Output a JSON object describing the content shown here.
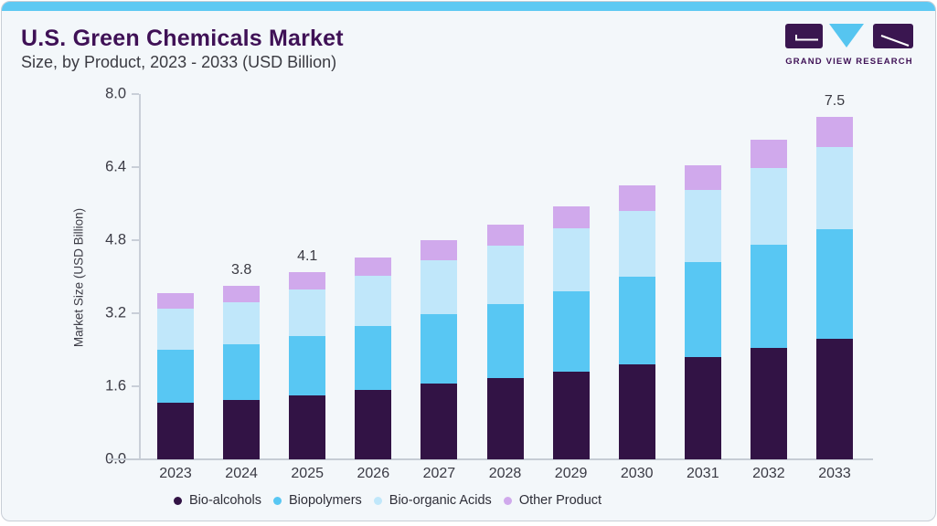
{
  "header": {
    "title": "U.S. Green Chemicals Market",
    "subtitle": "Size, by Product, 2023 - 2033 (USD Billion)",
    "logo_text": "GRAND VIEW RESEARCH"
  },
  "colors": {
    "accent_strip": "#5ec9f3",
    "card_background": "#f3f7fa",
    "card_border": "#c8ced6",
    "title_purple": "#3f1156",
    "axis_line": "#c9cfd8",
    "text_gray": "#3c3c46",
    "logo_dark_purple": "#3a1650",
    "logo_blue": "#56c5f0"
  },
  "chart_data": {
    "type": "bar",
    "stacked": true,
    "title": "U.S. Green Chemicals Market Size, by Product, 2023 - 2033 (USD Billion)",
    "xlabel": "",
    "ylabel": "Market Size (USD Billion)",
    "ylim": [
      0,
      8
    ],
    "yticks": [
      8.0,
      6.4,
      4.8,
      3.2,
      1.6,
      0.0
    ],
    "grid": false,
    "legend_position": "bottom",
    "categories": [
      "2023",
      "2024",
      "2025",
      "2026",
      "2027",
      "2028",
      "2029",
      "2030",
      "2031",
      "2032",
      "2033"
    ],
    "series": [
      {
        "name": "Bio-alcohols",
        "color": "#321345",
        "values": [
          1.25,
          1.3,
          1.4,
          1.52,
          1.66,
          1.78,
          1.92,
          2.08,
          2.24,
          2.45,
          2.65
        ]
      },
      {
        "name": "Biopolymers",
        "color": "#58c7f3",
        "values": [
          1.15,
          1.22,
          1.3,
          1.4,
          1.52,
          1.62,
          1.76,
          1.92,
          2.08,
          2.26,
          2.4
        ]
      },
      {
        "name": "Bio-organic Acids",
        "color": "#c0e7fa",
        "values": [
          0.9,
          0.92,
          1.02,
          1.1,
          1.18,
          1.28,
          1.38,
          1.44,
          1.58,
          1.68,
          1.8
        ]
      },
      {
        "name": "Other Product",
        "color": "#d0a9ec",
        "values": [
          0.35,
          0.36,
          0.38,
          0.4,
          0.44,
          0.47,
          0.49,
          0.56,
          0.55,
          0.61,
          0.65
        ]
      }
    ],
    "totals": [
      3.65,
      3.8,
      4.1,
      4.42,
      4.8,
      5.15,
      5.55,
      6.0,
      6.45,
      7.0,
      7.5
    ],
    "bar_labels": [
      "",
      "3.8",
      "4.1",
      "",
      "",
      "",
      "",
      "",
      "",
      "",
      "7.5"
    ]
  }
}
